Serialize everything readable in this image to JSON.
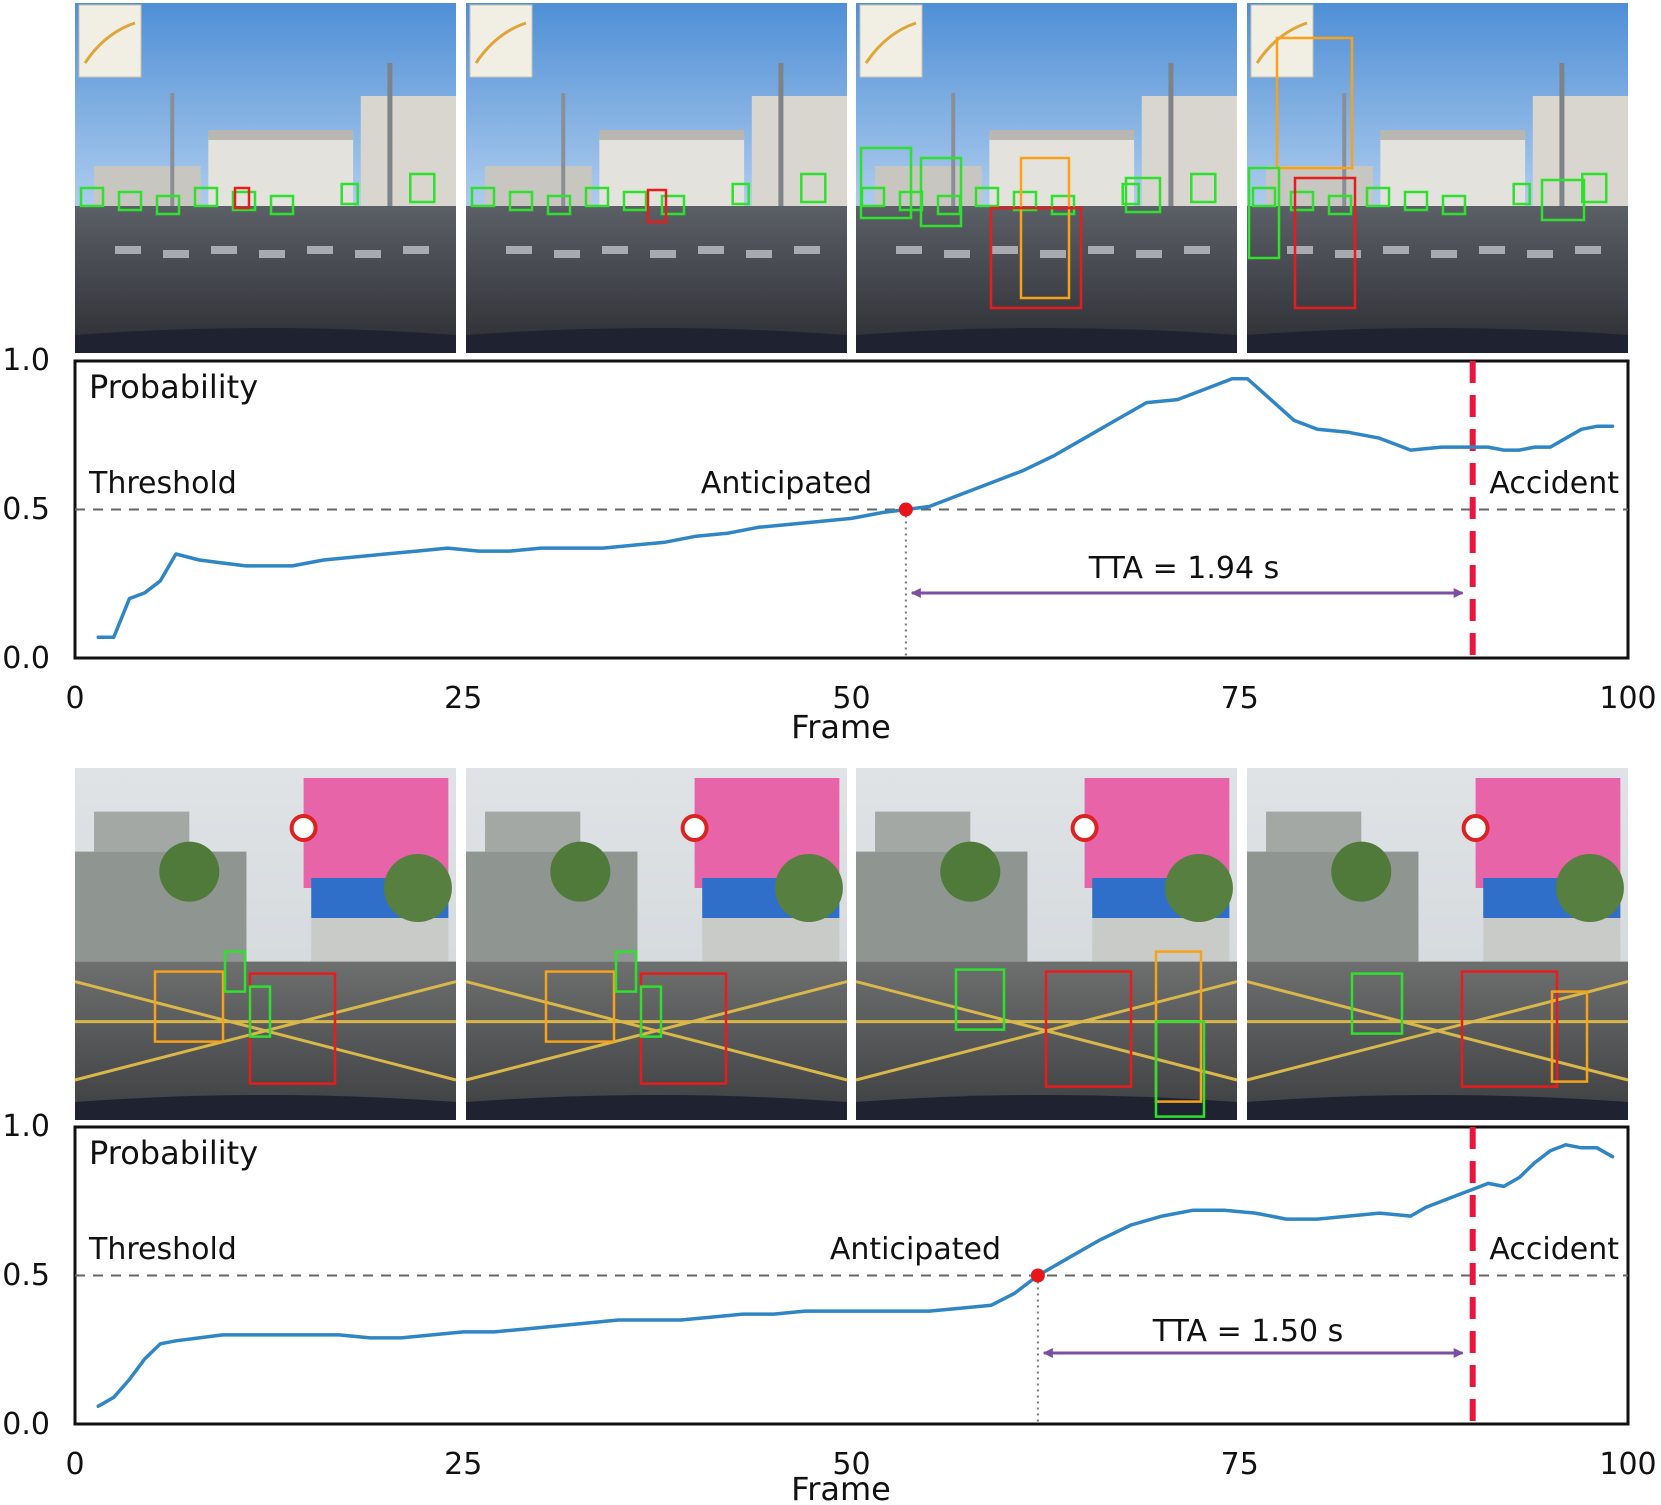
{
  "chart_data": [
    {
      "type": "line",
      "title": "",
      "ylabel": "Probability",
      "xlabel": "Frame",
      "xlim": [
        0,
        100
      ],
      "ylim": [
        0,
        1
      ],
      "xticks": [
        0,
        25,
        50,
        75,
        100
      ],
      "yticks": [
        "0.0",
        "0.5",
        "1.0"
      ],
      "threshold": 0.5,
      "threshold_label": "Threshold",
      "anticipated_label": "Anticipated",
      "anticipated_frame": 53.5,
      "accident_label": "Accident",
      "accident_frame": 90,
      "tta_label": "TTA = 1.94 s",
      "series": [
        {
          "x": [
            1.5,
            2.5,
            3.5,
            4.5,
            5.5,
            6.5,
            8,
            9.5,
            11,
            12.5,
            14,
            16,
            18,
            20,
            22,
            24,
            26,
            28,
            30,
            32,
            34,
            36,
            38,
            40,
            42,
            44,
            46,
            48,
            50,
            52,
            53.5,
            55,
            57,
            59,
            61,
            63,
            65,
            67,
            69,
            71,
            73,
            74.5,
            75.5,
            77,
            78.5,
            80,
            82,
            84,
            86,
            88,
            90,
            91,
            92,
            93,
            94,
            95,
            96,
            97,
            98,
            99
          ],
          "y": [
            0.07,
            0.07,
            0.2,
            0.22,
            0.26,
            0.35,
            0.33,
            0.32,
            0.31,
            0.31,
            0.31,
            0.33,
            0.34,
            0.35,
            0.36,
            0.37,
            0.36,
            0.36,
            0.37,
            0.37,
            0.37,
            0.38,
            0.39,
            0.41,
            0.42,
            0.44,
            0.45,
            0.46,
            0.47,
            0.49,
            0.5,
            0.51,
            0.55,
            0.59,
            0.63,
            0.68,
            0.74,
            0.8,
            0.86,
            0.87,
            0.91,
            0.94,
            0.94,
            0.87,
            0.8,
            0.77,
            0.76,
            0.74,
            0.7,
            0.71,
            0.71,
            0.71,
            0.7,
            0.7,
            0.71,
            0.71,
            0.74,
            0.77,
            0.78,
            0.78
          ]
        }
      ]
    },
    {
      "type": "line",
      "title": "",
      "ylabel": "Probability",
      "xlabel": "Frame",
      "xlim": [
        0,
        100
      ],
      "ylim": [
        0,
        1
      ],
      "xticks": [
        0,
        25,
        50,
        75,
        100
      ],
      "yticks": [
        "0.0",
        "0.5",
        "1.0"
      ],
      "threshold": 0.5,
      "threshold_label": "Threshold",
      "anticipated_label": "Anticipated",
      "anticipated_frame": 62,
      "accident_label": "Accident",
      "accident_frame": 90,
      "tta_label": "TTA = 1.50 s",
      "series": [
        {
          "x": [
            1.5,
            2.5,
            3.5,
            4.5,
            5.5,
            6.5,
            8,
            9.5,
            11,
            13,
            15,
            17,
            19,
            21,
            23,
            25,
            27,
            29,
            31,
            33,
            35,
            37,
            39,
            41,
            43,
            45,
            47,
            49,
            51,
            53,
            55,
            57,
            59,
            60.5,
            62,
            64,
            66,
            68,
            70,
            72,
            74,
            76,
            78,
            80,
            82,
            84,
            86,
            87,
            88,
            89,
            90,
            91,
            92,
            93,
            94,
            95,
            96,
            97,
            98,
            99
          ],
          "y": [
            0.06,
            0.09,
            0.15,
            0.22,
            0.27,
            0.28,
            0.29,
            0.3,
            0.3,
            0.3,
            0.3,
            0.3,
            0.29,
            0.29,
            0.3,
            0.31,
            0.31,
            0.32,
            0.33,
            0.34,
            0.35,
            0.35,
            0.35,
            0.36,
            0.37,
            0.37,
            0.38,
            0.38,
            0.38,
            0.38,
            0.38,
            0.39,
            0.4,
            0.44,
            0.5,
            0.56,
            0.62,
            0.67,
            0.7,
            0.72,
            0.72,
            0.71,
            0.69,
            0.69,
            0.7,
            0.71,
            0.7,
            0.73,
            0.75,
            0.77,
            0.79,
            0.81,
            0.8,
            0.83,
            0.88,
            0.92,
            0.94,
            0.93,
            0.93,
            0.9
          ]
        }
      ]
    }
  ],
  "colors": {
    "line": "#2f86c4",
    "threshold": "#666666",
    "anticipated_point": "#e8161a",
    "accident_line": "#e8163c",
    "tta_arrow": "#7b4fa2",
    "bbox_green": "#2fe02f",
    "bbox_orange": "#f7a21a",
    "bbox_red": "#e81c1c"
  }
}
